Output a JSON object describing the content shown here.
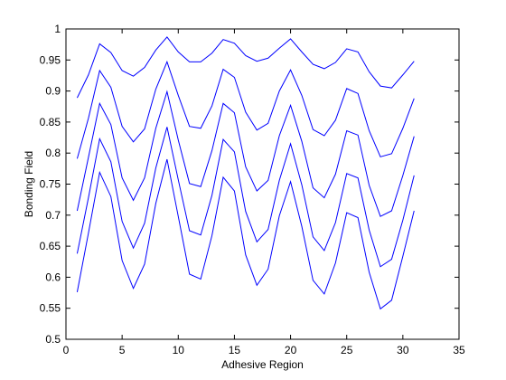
{
  "chart_data": {
    "type": "line",
    "xlabel": "Adhesive Region",
    "ylabel": "Bonding Field",
    "xlim": [
      0,
      35
    ],
    "ylim": [
      0.5,
      1
    ],
    "xticks": [
      0,
      5,
      10,
      15,
      20,
      25,
      30,
      35
    ],
    "yticks": [
      0.5,
      0.55,
      0.6,
      0.65,
      0.7,
      0.75,
      0.8,
      0.85,
      0.9,
      0.95,
      1
    ],
    "ytick_labels": [
      "0.5",
      "0.55",
      "0.6",
      "0.65",
      "0.7",
      "0.75",
      "0.8",
      "0.85",
      "0.9",
      "0.95",
      "1"
    ],
    "grid": false,
    "line_color": "#0000ff",
    "x": [
      1,
      2,
      3,
      4,
      5,
      6,
      7,
      8,
      9,
      10,
      11,
      12,
      13,
      14,
      15,
      16,
      17,
      18,
      19,
      20,
      21,
      22,
      23,
      24,
      25,
      26,
      27,
      28,
      29,
      30,
      31
    ],
    "series": [
      {
        "values": [
          0.889,
          0.926,
          0.976,
          0.962,
          0.933,
          0.924,
          0.938,
          0.966,
          0.987,
          0.963,
          0.947,
          0.947,
          0.961,
          0.983,
          0.977,
          0.957,
          0.948,
          0.953,
          0.969,
          0.984,
          0.963,
          0.943,
          0.936,
          0.946,
          0.968,
          0.963,
          0.931,
          0.908,
          0.905,
          0.926,
          0.948
        ]
      },
      {
        "values": [
          0.791,
          0.856,
          0.933,
          0.906,
          0.843,
          0.818,
          0.839,
          0.903,
          0.947,
          0.893,
          0.843,
          0.84,
          0.876,
          0.935,
          0.922,
          0.866,
          0.837,
          0.848,
          0.9,
          0.934,
          0.893,
          0.838,
          0.828,
          0.853,
          0.904,
          0.896,
          0.836,
          0.794,
          0.799,
          0.84,
          0.888
        ]
      },
      {
        "values": [
          0.707,
          0.793,
          0.88,
          0.846,
          0.76,
          0.724,
          0.76,
          0.84,
          0.899,
          0.821,
          0.751,
          0.746,
          0.804,
          0.88,
          0.865,
          0.778,
          0.739,
          0.756,
          0.828,
          0.877,
          0.819,
          0.744,
          0.728,
          0.766,
          0.836,
          0.829,
          0.748,
          0.698,
          0.707,
          0.764,
          0.827
        ]
      },
      {
        "values": [
          0.638,
          0.728,
          0.823,
          0.786,
          0.69,
          0.647,
          0.687,
          0.776,
          0.842,
          0.757,
          0.675,
          0.668,
          0.732,
          0.822,
          0.802,
          0.706,
          0.657,
          0.677,
          0.756,
          0.815,
          0.749,
          0.665,
          0.643,
          0.688,
          0.767,
          0.76,
          0.676,
          0.617,
          0.629,
          0.692,
          0.764
        ]
      },
      {
        "values": [
          0.576,
          0.671,
          0.769,
          0.73,
          0.627,
          0.582,
          0.621,
          0.719,
          0.79,
          0.698,
          0.605,
          0.597,
          0.667,
          0.761,
          0.739,
          0.636,
          0.587,
          0.613,
          0.699,
          0.754,
          0.682,
          0.595,
          0.573,
          0.623,
          0.704,
          0.696,
          0.608,
          0.549,
          0.563,
          0.634,
          0.707
        ]
      }
    ]
  }
}
